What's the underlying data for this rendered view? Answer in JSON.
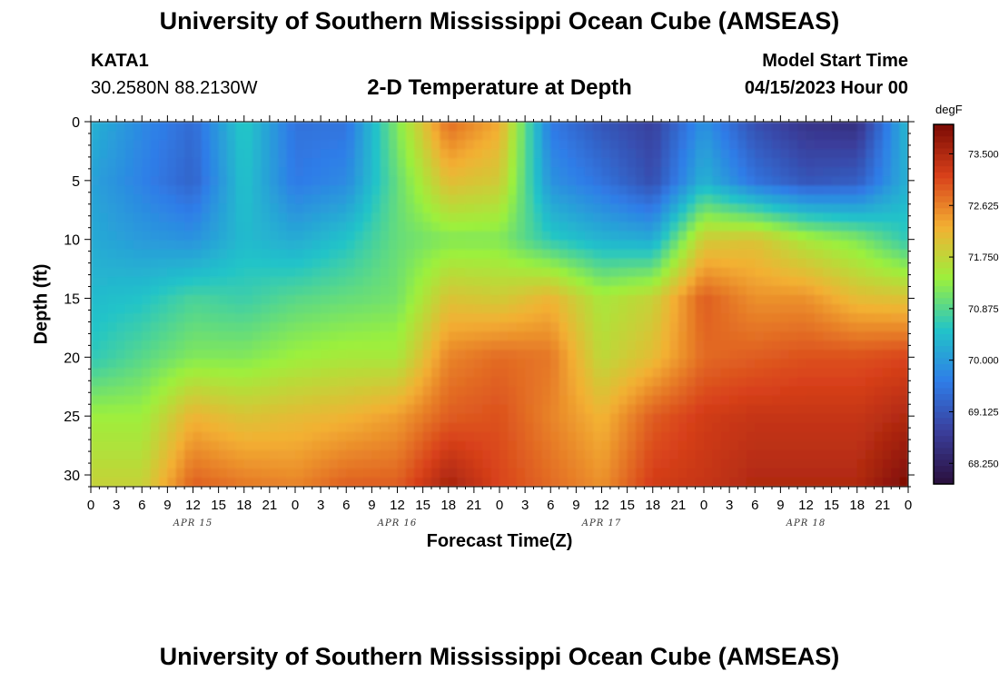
{
  "header": {
    "title": "University of Southern Mississippi Ocean Cube (AMSEAS)",
    "station_id": "KATA1",
    "station_coords": "30.2580N  88.2130W",
    "plot_title": "2-D Temperature at Depth",
    "model_start_label": "Model Start Time",
    "model_start_value": "04/15/2023 Hour 00"
  },
  "footer": {
    "title": "University of Southern Mississippi Ocean Cube (AMSEAS)"
  },
  "colors": {
    "scale": [
      "#2a0f3b",
      "#3a3d9a",
      "#2f7de8",
      "#22c4c8",
      "#9cf03c",
      "#f3b033",
      "#d8401a",
      "#7a0a04"
    ]
  },
  "chart_data": {
    "type": "heatmap",
    "title": "2-D Temperature at Depth",
    "xlabel": "Forecast Time(Z)",
    "ylabel": "Depth (ft)",
    "x_tick_labels": [
      "0",
      "3",
      "6",
      "9",
      "12",
      "15",
      "18",
      "21",
      "0",
      "3",
      "6",
      "9",
      "12",
      "15",
      "18",
      "21",
      "0",
      "3",
      "6",
      "9",
      "12",
      "15",
      "18",
      "21",
      "0",
      "3",
      "6",
      "9",
      "12",
      "15",
      "18",
      "21",
      "0"
    ],
    "date_labels": [
      {
        "label": "APR 15",
        "hour": 12
      },
      {
        "label": "APR 16",
        "hour": 36
      },
      {
        "label": "APR 17",
        "hour": 60
      },
      {
        "label": "APR 18",
        "hour": 84
      }
    ],
    "xlim_hours": [
      0,
      96
    ],
    "y_ticks": [
      0,
      5,
      10,
      15,
      20,
      25,
      30
    ],
    "ylim_ft": [
      0,
      31
    ],
    "colorbar": {
      "unit": "degF",
      "tick_labels": [
        "73.500",
        "72.625",
        "71.750",
        "70.875",
        "70.000",
        "69.125",
        "68.250"
      ],
      "tick_values": [
        73.5,
        72.625,
        71.75,
        70.875,
        70.0,
        69.125,
        68.25
      ],
      "range": [
        67.9,
        74.0
      ]
    },
    "depths_ft": [
      0,
      5,
      10,
      15,
      20,
      25,
      31
    ],
    "hours": [
      0,
      6,
      12,
      18,
      24,
      30,
      36,
      42,
      48,
      54,
      60,
      66,
      72,
      78,
      84,
      90,
      96
    ],
    "temperature_degF": [
      [
        70.3,
        69.8,
        69.4,
        70.6,
        69.5,
        69.5,
        71.2,
        72.8,
        72.3,
        69.6,
        69.1,
        68.8,
        69.9,
        69.0,
        68.6,
        68.5,
        70.4
      ],
      [
        70.1,
        69.7,
        69.3,
        70.5,
        69.6,
        69.8,
        71.0,
        72.1,
        71.9,
        69.9,
        69.5,
        69.0,
        70.3,
        69.5,
        69.1,
        69.2,
        70.3
      ],
      [
        70.2,
        70.0,
        69.9,
        70.4,
        70.2,
        70.5,
        71.0,
        71.2,
        71.2,
        70.6,
        70.3,
        70.2,
        71.9,
        72.0,
        71.5,
        71.2,
        70.6
      ],
      [
        70.4,
        70.5,
        70.8,
        70.7,
        70.9,
        71.0,
        71.1,
        72.0,
        71.9,
        72.2,
        71.5,
        71.8,
        72.9,
        72.5,
        72.5,
        72.1,
        72.0
      ],
      [
        70.6,
        70.9,
        71.2,
        71.2,
        71.4,
        71.5,
        71.5,
        72.6,
        72.8,
        72.7,
        71.7,
        72.1,
        72.8,
        72.9,
        73.0,
        73.0,
        73.1
      ],
      [
        71.4,
        71.4,
        72.2,
        72.0,
        72.1,
        72.2,
        72.4,
        72.9,
        73.0,
        72.6,
        72.2,
        72.9,
        73.2,
        73.3,
        73.3,
        73.3,
        73.5
      ],
      [
        71.8,
        71.8,
        72.9,
        72.7,
        72.6,
        72.9,
        72.9,
        73.6,
        73.1,
        72.8,
        72.5,
        73.2,
        73.3,
        73.5,
        73.5,
        73.5,
        74.0
      ]
    ]
  }
}
